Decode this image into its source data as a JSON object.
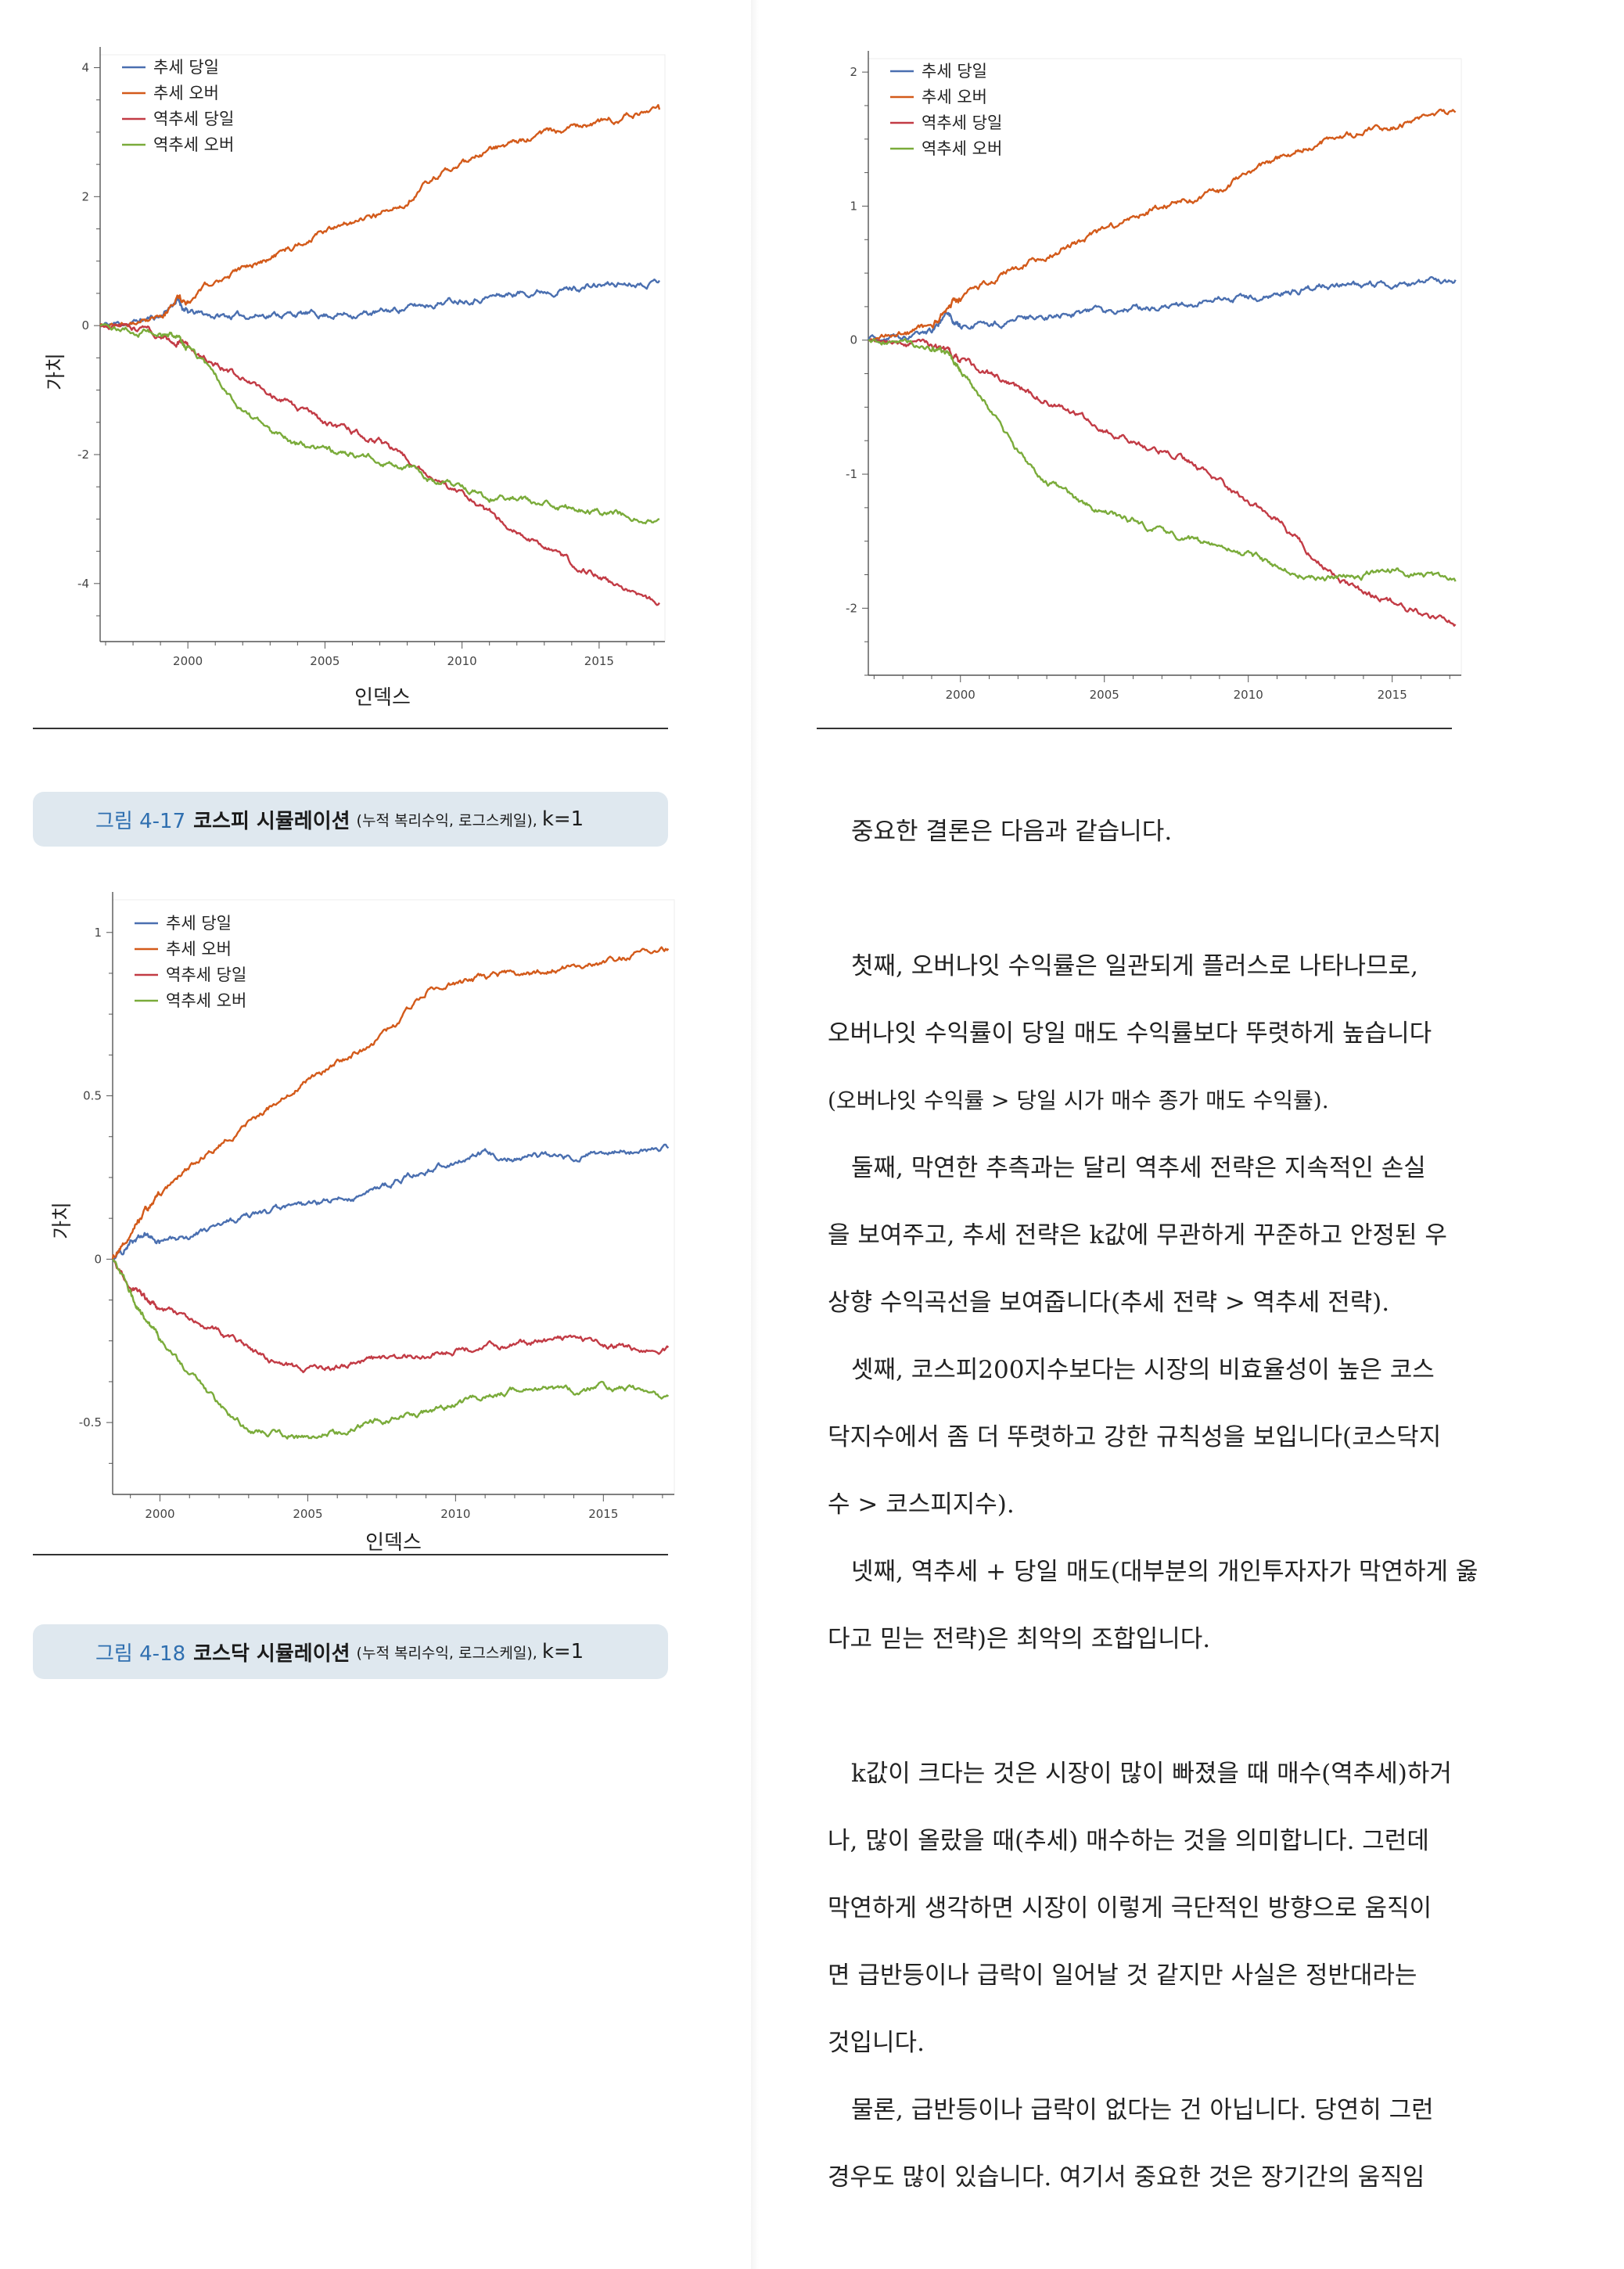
{
  "chart_data": [
    {
      "type": "line",
      "xlabel": "인덱스",
      "ylabel": "가치",
      "xlim": [
        1996.8,
        2017.4
      ],
      "ylim": [
        -4.9,
        4.2
      ],
      "xticks": [
        2000,
        2005,
        2010,
        2015
      ],
      "yticks": [
        -4,
        -2,
        0,
        2,
        4
      ],
      "legend_position": "top-left",
      "grid": false,
      "x": [
        1996.8,
        1998,
        1999,
        1999.6,
        2000,
        2001,
        2002,
        2003,
        2004,
        2005,
        2006,
        2007,
        2008,
        2009,
        2010,
        2011,
        2012,
        2013,
        2014,
        2015,
        2016,
        2017.2
      ],
      "series": [
        {
          "name": "추세 당일",
          "color": "#4a6fb0",
          "values": [
            0,
            0.05,
            0.15,
            0.4,
            0.2,
            0.15,
            0.15,
            0.18,
            0.18,
            0.17,
            0.18,
            0.2,
            0.28,
            0.35,
            0.42,
            0.45,
            0.5,
            0.55,
            0.58,
            0.62,
            0.66,
            0.7
          ]
        },
        {
          "name": "추세 오버",
          "color": "#d35a1a",
          "values": [
            0,
            0.05,
            0.15,
            0.45,
            0.35,
            0.7,
            0.85,
            1.05,
            1.25,
            1.45,
            1.6,
            1.75,
            1.95,
            2.3,
            2.5,
            2.7,
            2.85,
            2.98,
            3.08,
            3.15,
            3.25,
            3.35
          ]
        },
        {
          "name": "역추세 당일",
          "color": "#c23b45",
          "values": [
            0,
            -0.05,
            -0.15,
            -0.25,
            -0.35,
            -0.6,
            -0.8,
            -1.05,
            -1.3,
            -1.5,
            -1.65,
            -1.8,
            -2.1,
            -2.35,
            -2.6,
            -2.9,
            -3.15,
            -3.4,
            -3.7,
            -3.9,
            -4.1,
            -4.3
          ]
        },
        {
          "name": "역추세 오버",
          "color": "#7aab3a",
          "values": [
            0,
            -0.05,
            -0.15,
            -0.2,
            -0.35,
            -0.8,
            -1.3,
            -1.65,
            -1.85,
            -1.95,
            -2.0,
            -2.1,
            -2.2,
            -2.4,
            -2.55,
            -2.65,
            -2.7,
            -2.8,
            -2.82,
            -2.9,
            -2.95,
            -3.0
          ]
        }
      ]
    },
    {
      "type": "line",
      "xlabel": "",
      "ylabel": "",
      "xlim": [
        1996.8,
        2017.4
      ],
      "ylim": [
        -2.5,
        2.1
      ],
      "xticks": [
        2000,
        2005,
        2010,
        2015
      ],
      "yticks": [
        -2,
        -1,
        0,
        1,
        2
      ],
      "legend_position": "top-left",
      "grid": false,
      "x": [
        1996.8,
        1998,
        1999,
        1999.6,
        2000,
        2001,
        2002,
        2003,
        2004,
        2005,
        2006,
        2007,
        2008,
        2009,
        2010,
        2011,
        2012,
        2013,
        2014,
        2015,
        2016,
        2017.2
      ],
      "series": [
        {
          "name": "추세 당일",
          "color": "#4a6fb0",
          "values": [
            0,
            0.02,
            0.05,
            0.2,
            0.1,
            0.12,
            0.15,
            0.18,
            0.2,
            0.22,
            0.24,
            0.25,
            0.28,
            0.3,
            0.32,
            0.35,
            0.38,
            0.4,
            0.41,
            0.42,
            0.43,
            0.45
          ]
        },
        {
          "name": "추세 오버",
          "color": "#d35a1a",
          "values": [
            0,
            0.05,
            0.1,
            0.25,
            0.3,
            0.45,
            0.55,
            0.65,
            0.72,
            0.82,
            0.9,
            1.0,
            1.05,
            1.1,
            1.25,
            1.35,
            1.45,
            1.5,
            1.55,
            1.6,
            1.65,
            1.7
          ]
        },
        {
          "name": "역추세 당일",
          "color": "#c23b45",
          "values": [
            0,
            -0.02,
            -0.05,
            -0.1,
            -0.15,
            -0.25,
            -0.35,
            -0.45,
            -0.55,
            -0.65,
            -0.75,
            -0.82,
            -0.9,
            -1.05,
            -1.2,
            -1.35,
            -1.55,
            -1.75,
            -1.9,
            -1.95,
            -2.05,
            -2.12
          ]
        },
        {
          "name": "역추세 오버",
          "color": "#7aab3a",
          "values": [
            0,
            -0.02,
            -0.05,
            -0.1,
            -0.2,
            -0.5,
            -0.85,
            -1.05,
            -1.2,
            -1.3,
            -1.35,
            -1.42,
            -1.5,
            -1.55,
            -1.6,
            -1.7,
            -1.75,
            -1.78,
            -1.75,
            -1.72,
            -1.75,
            -1.8
          ]
        }
      ]
    },
    {
      "type": "line",
      "xlabel": "인덱스",
      "ylabel": "가치",
      "xlim": [
        1998.4,
        2017.4
      ],
      "ylim": [
        -0.72,
        1.1
      ],
      "xticks": [
        2000,
        2005,
        2010,
        2015
      ],
      "yticks": [
        -0.5,
        0,
        0.5,
        1
      ],
      "legend_position": "top-left",
      "grid": false,
      "x": [
        1998.4,
        1999,
        1999.5,
        2000,
        2001,
        2002,
        2003,
        2004,
        2005,
        2006,
        2007,
        2008,
        2009,
        2010,
        2011,
        2012,
        2013,
        2014,
        2015,
        2016,
        2017.2
      ],
      "series": [
        {
          "name": "추세 당일",
          "color": "#4a6fb0",
          "values": [
            0,
            0.05,
            0.07,
            0.05,
            0.07,
            0.1,
            0.13,
            0.15,
            0.16,
            0.18,
            0.2,
            0.24,
            0.27,
            0.3,
            0.32,
            0.31,
            0.32,
            0.31,
            0.32,
            0.33,
            0.34
          ]
        },
        {
          "name": "추세 오버",
          "color": "#d35a1a",
          "values": [
            0,
            0.08,
            0.15,
            0.2,
            0.28,
            0.35,
            0.42,
            0.48,
            0.55,
            0.6,
            0.65,
            0.72,
            0.82,
            0.84,
            0.86,
            0.87,
            0.88,
            0.9,
            0.91,
            0.93,
            0.95
          ]
        },
        {
          "name": "역추세 당일",
          "color": "#c23b45",
          "values": [
            0,
            -0.08,
            -0.12,
            -0.15,
            -0.18,
            -0.22,
            -0.28,
            -0.32,
            -0.34,
            -0.33,
            -0.31,
            -0.3,
            -0.29,
            -0.28,
            -0.27,
            -0.26,
            -0.25,
            -0.25,
            -0.26,
            -0.27,
            -0.27
          ]
        },
        {
          "name": "역추세 오버",
          "color": "#7aab3a",
          "values": [
            0,
            -0.1,
            -0.18,
            -0.25,
            -0.35,
            -0.45,
            -0.52,
            -0.53,
            -0.55,
            -0.53,
            -0.5,
            -0.48,
            -0.47,
            -0.45,
            -0.42,
            -0.4,
            -0.39,
            -0.4,
            -0.39,
            -0.4,
            -0.42
          ]
        }
      ]
    }
  ],
  "captions": {
    "fig17": {
      "number": "그림 4-17",
      "title": "코스피 시뮬레이션",
      "sub": "(누적 복리수익, 로그스케일),",
      "k": "k=1"
    },
    "fig18": {
      "number": "그림 4-18",
      "title": "코스닥 시뮬레이션",
      "sub": "(누적 복리수익, 로그스케일),",
      "k": "k=1"
    }
  },
  "body": {
    "p1": "중요한 결론은 다음과 같습니다.",
    "p2": [
      "첫째, 오버나잇 수익률은 일관되게 플러스로 나타나므로,",
      "오버나잇 수익률이 당일 매도 수익률보다 뚜렷하게 높습니다",
      "(오버나잇 수익률 > 당일 시가 매수 종가 매도 수익률)."
    ],
    "p3": [
      "둘째, 막연한 추측과는 달리 역추세 전략은 지속적인 손실",
      "을 보여주고, 추세 전략은 k값에 무관하게 꾸준하고 안정된 우",
      "상향 수익곡선을 보여줍니다(추세 전략 > 역추세 전략)."
    ],
    "p4": [
      "셋째, 코스피200지수보다는 시장의 비효율성이 높은 코스",
      "닥지수에서 좀 더 뚜렷하고 강한 규칙성을 보입니다(코스닥지",
      "수 > 코스피지수)."
    ],
    "p5": [
      "넷째, 역추세 + 당일 매도(대부분의 개인투자자가 막연하게 옳",
      "다고 믿는 전략)은 최악의 조합입니다."
    ],
    "p6": [
      "k값이 크다는 것은 시장이 많이 빠졌을 때 매수(역추세)하거",
      "나, 많이 올랐을 때(추세) 매수하는 것을 의미합니다. 그런데",
      "막연하게 생각하면 시장이 이렇게 극단적인 방향으로 움직이",
      "면 급반등이나 급락이 일어날 것 같지만 사실은 정반대라는",
      "것입니다."
    ],
    "p7": [
      "물론, 급반등이나 급락이 없다는 건 아닙니다. 당연히 그런",
      "경우도 많이 있습니다. 여기서 중요한 것은 장기간의 움직임"
    ]
  }
}
